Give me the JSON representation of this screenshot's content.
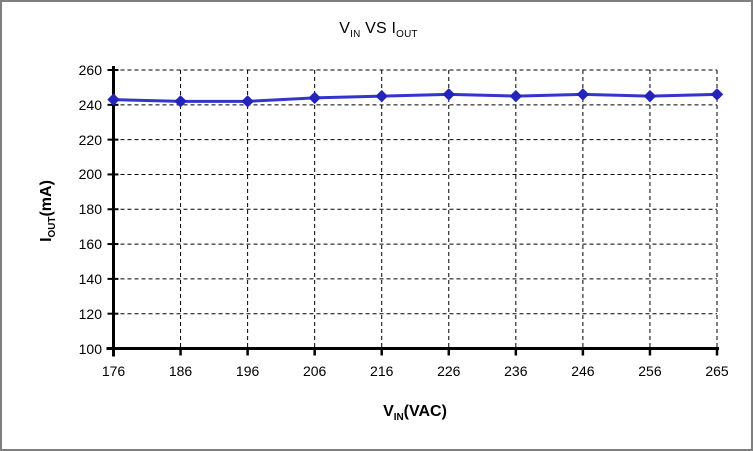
{
  "window": {
    "background": "#ffffff",
    "frame_border_color": "#7f7f7f"
  },
  "chart_data": {
    "type": "line",
    "title_text": "VIN VS IOUT",
    "title_parts": [
      {
        "text": "V"
      },
      {
        "text": "IN",
        "subscript": true
      },
      {
        "text": " VS I"
      },
      {
        "text": "OUT",
        "subscript": true
      }
    ],
    "x_label_text": "VIN(VAC)",
    "x_label_parts": [
      {
        "text": "V"
      },
      {
        "text": "IN",
        "subscript": true
      },
      {
        "text": "(VAC)"
      }
    ],
    "y_label_text": "IOUT(mA)",
    "y_label_parts": [
      {
        "text": "I"
      },
      {
        "text": "OUT",
        "subscript": true
      },
      {
        "text": "(mA)"
      }
    ],
    "categories": [
      "176",
      "186",
      "196",
      "206",
      "216",
      "226",
      "236",
      "246",
      "256",
      "265"
    ],
    "series": [
      {
        "name": "IOUT",
        "values": [
          243,
          242,
          242,
          244,
          245,
          246,
          245,
          246,
          245,
          246
        ],
        "line_color": "#3434cf",
        "marker_color": "#2424bc",
        "marker": "diamond"
      }
    ],
    "y_axis": {
      "min": 100,
      "max": 260,
      "step": 20,
      "tick_labels": [
        "100",
        "120",
        "140",
        "160",
        "180",
        "200",
        "220",
        "240",
        "260"
      ]
    },
    "x_axis": {
      "tick_labels": [
        "176",
        "186",
        "196",
        "206",
        "216",
        "226",
        "236",
        "246",
        "256",
        "265"
      ]
    },
    "grid": {
      "horizontal": true,
      "vertical": true,
      "line_style": "dashed",
      "color": "#000000"
    },
    "axis_color": "#000000",
    "legend": {
      "visible": false
    }
  }
}
